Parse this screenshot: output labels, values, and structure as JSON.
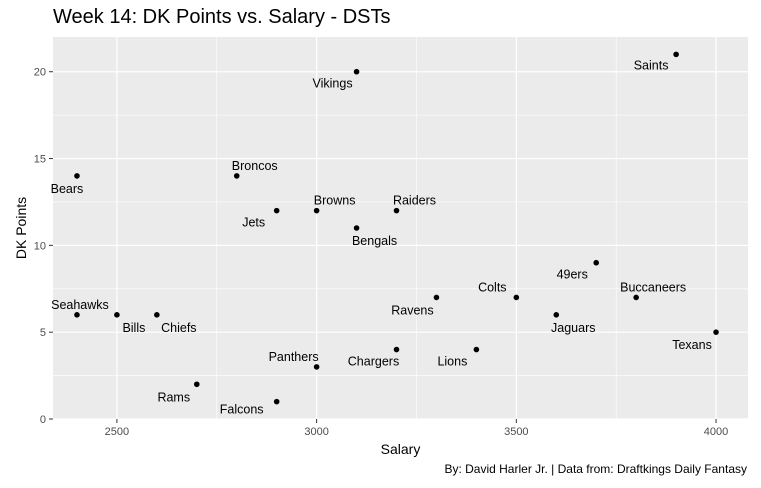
{
  "chart_data": {
    "type": "scatter",
    "title": "Week 14: DK Points vs. Salary - DSTs",
    "caption": "By: David Harler Jr. | Data from: Draftkings Daily Fantasy",
    "xlabel": "Salary",
    "ylabel": "DK Points",
    "xlim": [
      2340,
      4080
    ],
    "ylim": [
      0,
      22
    ],
    "xticks": [
      2500,
      3000,
      3500,
      4000
    ],
    "yticks": [
      0,
      5,
      10,
      15,
      20
    ],
    "grid": true,
    "panel_color": "#ebebeb",
    "point_color": "#000000",
    "points": [
      {
        "label": "Saints",
        "x": 3900,
        "y": 21
      },
      {
        "label": "Vikings",
        "x": 3100,
        "y": 20
      },
      {
        "label": "Bears",
        "x": 2400,
        "y": 14
      },
      {
        "label": "Broncos",
        "x": 2800,
        "y": 14
      },
      {
        "label": "Jets",
        "x": 2900,
        "y": 12
      },
      {
        "label": "Browns",
        "x": 3000,
        "y": 12
      },
      {
        "label": "Raiders",
        "x": 3200,
        "y": 12
      },
      {
        "label": "Bengals",
        "x": 3100,
        "y": 11
      },
      {
        "label": "49ers",
        "x": 3700,
        "y": 9
      },
      {
        "label": "Colts",
        "x": 3500,
        "y": 7
      },
      {
        "label": "Ravens",
        "x": 3300,
        "y": 7
      },
      {
        "label": "Buccaneers",
        "x": 3800,
        "y": 7
      },
      {
        "label": "Seahawks",
        "x": 2400,
        "y": 6
      },
      {
        "label": "Bills",
        "x": 2500,
        "y": 6
      },
      {
        "label": "Chiefs",
        "x": 2600,
        "y": 6
      },
      {
        "label": "Jaguars",
        "x": 3600,
        "y": 6
      },
      {
        "label": "Texans",
        "x": 4000,
        "y": 5
      },
      {
        "label": "Chargers",
        "x": 3200,
        "y": 4
      },
      {
        "label": "Lions",
        "x": 3400,
        "y": 4
      },
      {
        "label": "Panthers",
        "x": 3000,
        "y": 3
      },
      {
        "label": "Rams",
        "x": 2700,
        "y": 2
      },
      {
        "label": "Falcons",
        "x": 2900,
        "y": 1
      }
    ]
  }
}
